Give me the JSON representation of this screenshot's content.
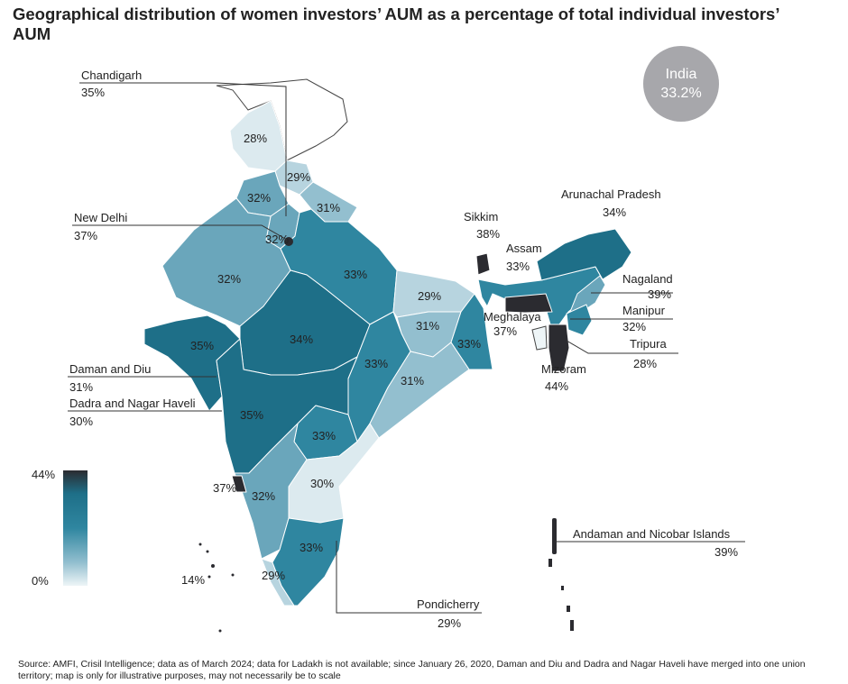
{
  "title": "Geographical distribution of women investors’ AUM as a percentage of total individual investors’ AUM",
  "national": {
    "label": "India",
    "value": "33.2%",
    "color": "#a7a7ab"
  },
  "legend": {
    "max_label": "44%",
    "min_label": "0%",
    "colors": [
      "#2b2b30",
      "#1e6f88",
      "#2f86a0",
      "#93bfcf",
      "#e6f1f4"
    ]
  },
  "callouts": [
    {
      "name": "Chandigarh",
      "value": "35%"
    },
    {
      "name": "New Delhi",
      "value": "37%"
    },
    {
      "name": "Daman and Diu",
      "value": "31%"
    },
    {
      "name": "Dadra and Nagar Haveli",
      "value": "30%"
    },
    {
      "name": "Sikkim",
      "value": "38%"
    },
    {
      "name": "Arunachal Pradesh",
      "value": "34%"
    },
    {
      "name": "Assam",
      "value": "33%"
    },
    {
      "name": "Nagaland",
      "value": "39%"
    },
    {
      "name": "Manipur",
      "value": "32%"
    },
    {
      "name": "Meghalaya",
      "value": "37%"
    },
    {
      "name": "Tripura",
      "value": "28%"
    },
    {
      "name": "Mizoram",
      "value": "44%"
    },
    {
      "name": "Andaman and Nicobar Islands",
      "value": "39%"
    },
    {
      "name": "Pondicherry",
      "value": "29%"
    }
  ],
  "region_values": [
    "28%",
    "29%",
    "32%",
    "31%",
    "32%",
    "32%",
    "33%",
    "29%",
    "31%",
    "33%",
    "35%",
    "34%",
    "33%",
    "31%",
    "35%",
    "33%",
    "30%",
    "37%",
    "32%",
    "29%",
    "33%",
    "14%"
  ],
  "footer": "Source: AMFI, Crisil Intelligence; data as of March 2024; data for Ladakh is not available; since January 26, 2020, Daman and Diu and Dadra and Nagar Haveli have merged into one union territory; map is only for illustrative purposes, may not necessarily be to scale"
}
